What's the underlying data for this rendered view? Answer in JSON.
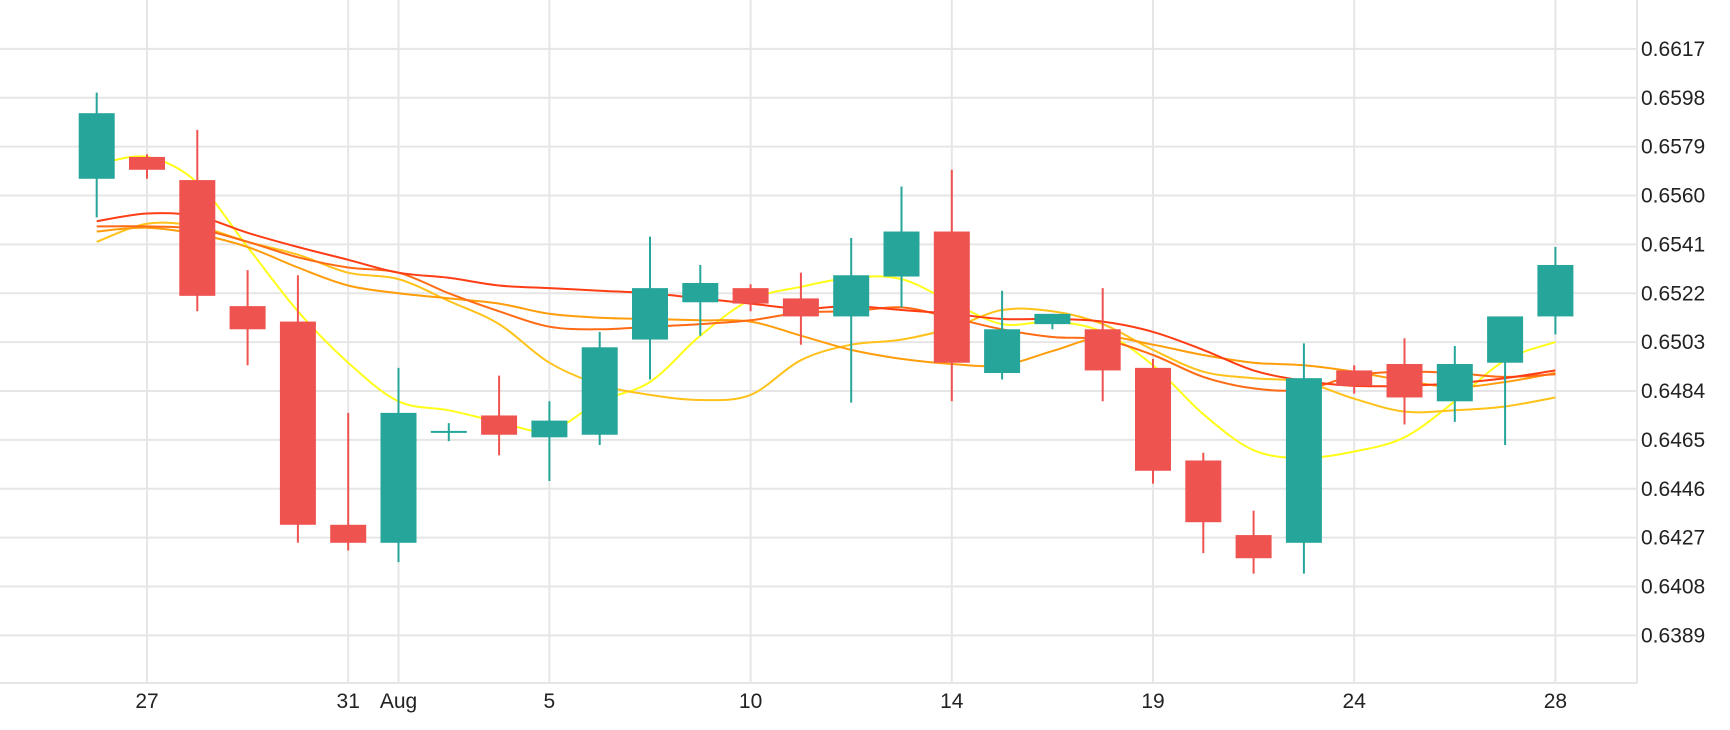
{
  "chart_data": {
    "type": "candlestick",
    "title": "",
    "xlabel": "",
    "ylabel": "",
    "grid": true,
    "legend": "none",
    "colors": {
      "up": "#26a69a",
      "down": "#ef5350",
      "grid": "#e6e6e6",
      "text": "#222222"
    },
    "x_ticks": [
      {
        "label": "27",
        "index": 1
      },
      {
        "label": "31",
        "index": 5
      },
      {
        "label": "Aug",
        "index": 6
      },
      {
        "label": "5",
        "index": 9
      },
      {
        "label": "10",
        "index": 13
      },
      {
        "label": "14",
        "index": 17
      },
      {
        "label": "19",
        "index": 21
      },
      {
        "label": "24",
        "index": 25
      },
      {
        "label": "28",
        "index": 29
      }
    ],
    "y_ticks": [
      "0.6389",
      "0.6408",
      "0.6427",
      "0.6446",
      "0.6465",
      "0.6484",
      "0.6503",
      "0.6522",
      "0.6541",
      "0.6560",
      "0.6579",
      "0.6598",
      "0.6617"
    ],
    "y_range": [
      0.63705,
      0.6636
    ],
    "candles": [
      {
        "o": 0.65665,
        "h": 0.66,
        "l": 0.65515,
        "c": 0.6592
      },
      {
        "o": 0.6575,
        "h": 0.6576,
        "l": 0.65665,
        "c": 0.657
      },
      {
        "o": 0.6566,
        "h": 0.65855,
        "l": 0.6515,
        "c": 0.6521
      },
      {
        "o": 0.6517,
        "h": 0.6531,
        "l": 0.6494,
        "c": 0.6508
      },
      {
        "o": 0.6511,
        "h": 0.6529,
        "l": 0.6425,
        "c": 0.6432
      },
      {
        "o": 0.6432,
        "h": 0.64755,
        "l": 0.6422,
        "c": 0.6425
      },
      {
        "o": 0.6425,
        "h": 0.6493,
        "l": 0.64175,
        "c": 0.64755
      },
      {
        "o": 0.64685,
        "h": 0.64715,
        "l": 0.64645,
        "c": 0.64685
      },
      {
        "o": 0.64745,
        "h": 0.649,
        "l": 0.6459,
        "c": 0.6467
      },
      {
        "o": 0.6466,
        "h": 0.648,
        "l": 0.6449,
        "c": 0.64725
      },
      {
        "o": 0.6467,
        "h": 0.6507,
        "l": 0.6463,
        "c": 0.6501
      },
      {
        "o": 0.6504,
        "h": 0.6544,
        "l": 0.64885,
        "c": 0.6524
      },
      {
        "o": 0.65185,
        "h": 0.6533,
        "l": 0.65055,
        "c": 0.6526
      },
      {
        "o": 0.6524,
        "h": 0.65255,
        "l": 0.6515,
        "c": 0.6518
      },
      {
        "o": 0.652,
        "h": 0.653,
        "l": 0.6502,
        "c": 0.6513
      },
      {
        "o": 0.6513,
        "h": 0.65435,
        "l": 0.64795,
        "c": 0.6529
      },
      {
        "o": 0.65285,
        "h": 0.65635,
        "l": 0.65165,
        "c": 0.6546
      },
      {
        "o": 0.6546,
        "h": 0.657,
        "l": 0.648,
        "c": 0.6495
      },
      {
        "o": 0.6491,
        "h": 0.6523,
        "l": 0.64885,
        "c": 0.6508
      },
      {
        "o": 0.651,
        "h": 0.6514,
        "l": 0.6508,
        "c": 0.6514
      },
      {
        "o": 0.6508,
        "h": 0.6524,
        "l": 0.648,
        "c": 0.6492
      },
      {
        "o": 0.6493,
        "h": 0.64965,
        "l": 0.6448,
        "c": 0.6453
      },
      {
        "o": 0.6457,
        "h": 0.646,
        "l": 0.6421,
        "c": 0.6433
      },
      {
        "o": 0.6428,
        "h": 0.64375,
        "l": 0.6413,
        "c": 0.6419
      },
      {
        "o": 0.6425,
        "h": 0.65025,
        "l": 0.6413,
        "c": 0.6489
      },
      {
        "o": 0.6492,
        "h": 0.6494,
        "l": 0.6483,
        "c": 0.6486
      },
      {
        "o": 0.64945,
        "h": 0.65045,
        "l": 0.6471,
        "c": 0.64815
      },
      {
        "o": 0.648,
        "h": 0.65015,
        "l": 0.6472,
        "c": 0.64945
      },
      {
        "o": 0.6495,
        "h": 0.65125,
        "l": 0.6463,
        "c": 0.6513
      },
      {
        "o": 0.6513,
        "h": 0.654,
        "l": 0.6506,
        "c": 0.6533
      }
    ],
    "overlay_lines": [
      {
        "color": "#ffff1a",
        "values": [
          0.6572,
          0.6575,
          0.6565,
          0.654,
          0.6515,
          0.6495,
          0.648,
          0.64765,
          0.6472,
          0.64685,
          0.648,
          0.64875,
          0.65055,
          0.65195,
          0.65245,
          0.6528,
          0.65275,
          0.65185,
          0.651,
          0.6511,
          0.6507,
          0.6494,
          0.6475,
          0.6461,
          0.6458,
          0.64605,
          0.6466,
          0.648,
          0.6496,
          0.6503
        ]
      },
      {
        "color": "#ffc21a",
        "values": [
          0.6542,
          0.6549,
          0.6548,
          0.6542,
          0.6537,
          0.653,
          0.65275,
          0.6519,
          0.651,
          0.6495,
          0.64865,
          0.64825,
          0.64805,
          0.64825,
          0.6496,
          0.6502,
          0.6504,
          0.65085,
          0.65155,
          0.6515,
          0.651,
          0.65,
          0.64915,
          0.6489,
          0.64875,
          0.6481,
          0.6476,
          0.64765,
          0.6478,
          0.64815
        ]
      },
      {
        "color": "#ff9d0a",
        "values": [
          0.6546,
          0.65475,
          0.6545,
          0.654,
          0.6532,
          0.6525,
          0.6522,
          0.652,
          0.6518,
          0.6514,
          0.65125,
          0.6512,
          0.65115,
          0.6511,
          0.65055,
          0.65,
          0.64965,
          0.64945,
          0.6494,
          0.64995,
          0.6505,
          0.6502,
          0.6498,
          0.6495,
          0.6494,
          0.64915,
          0.6488,
          0.64855,
          0.64875,
          0.6491
        ]
      },
      {
        "color": "#ff6a14",
        "values": [
          0.6548,
          0.6548,
          0.6547,
          0.6542,
          0.6536,
          0.6532,
          0.653,
          0.6522,
          0.6515,
          0.6509,
          0.6508,
          0.6509,
          0.651,
          0.65115,
          0.65145,
          0.6515,
          0.65165,
          0.65125,
          0.6508,
          0.6505,
          0.6504,
          0.6498,
          0.64895,
          0.6485,
          0.64845,
          0.649,
          0.64915,
          0.6491,
          0.64895,
          0.64905
        ]
      },
      {
        "color": "#ff3d14",
        "values": [
          0.655,
          0.6553,
          0.6552,
          0.65455,
          0.654,
          0.6535,
          0.653,
          0.6528,
          0.6525,
          0.6524,
          0.6523,
          0.6522,
          0.652,
          0.6518,
          0.6516,
          0.6517,
          0.65155,
          0.6514,
          0.6512,
          0.6512,
          0.6511,
          0.6507,
          0.65,
          0.6492,
          0.6488,
          0.6486,
          0.6486,
          0.6487,
          0.6489,
          0.6492
        ]
      }
    ]
  }
}
